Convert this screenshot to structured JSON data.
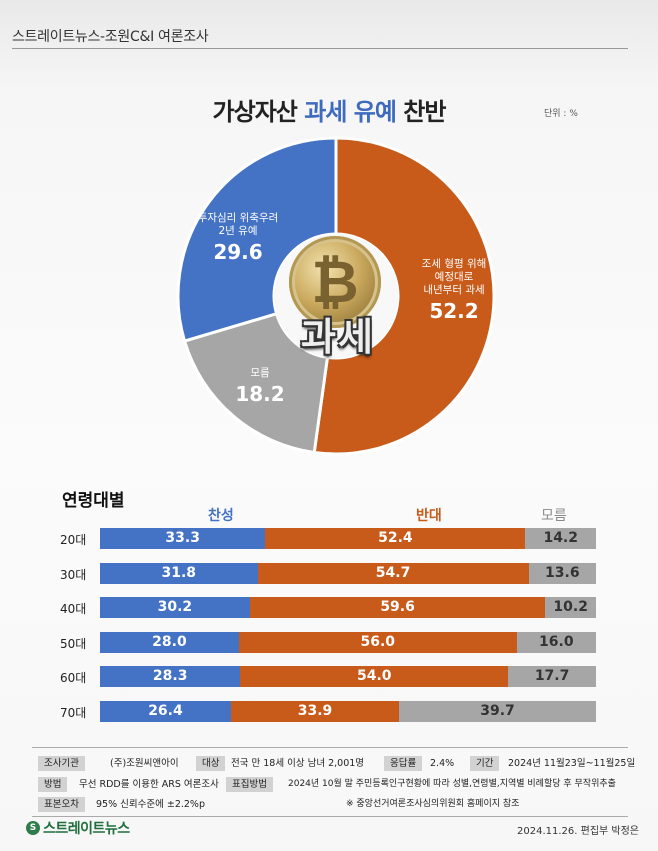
{
  "header": {
    "source": "스트레이트뉴스-조원C&I 여론조사"
  },
  "title": {
    "part1": "가상자산 ",
    "part2": "과세 유예",
    "part3": " 찬반"
  },
  "unit": "단위 : %",
  "center": {
    "coin_symbol": "₿",
    "word": "과세"
  },
  "chart_data": [
    {
      "type": "pie",
      "variant": "donut",
      "slices": [
        {
          "label_line1": "조세 형평 위해",
          "label_line2": "예정대로",
          "label_line3": "내년부터 과세",
          "value": 52.2,
          "color": "#c85a1a"
        },
        {
          "label_line1": "모름",
          "value": 18.2,
          "color": "#a6a6a6"
        },
        {
          "label_line1": "투자심리 위축우려",
          "label_line2": "2년 유예",
          "value": 29.6,
          "color": "#4472c4"
        }
      ]
    },
    {
      "type": "bar",
      "orientation": "horizontal",
      "stacked": true,
      "title": "연령대별",
      "categories": [
        "20대",
        "30대",
        "40대",
        "50대",
        "60대",
        "70대"
      ],
      "series": [
        {
          "name": "찬성",
          "color": "#4472c4",
          "values": [
            33.3,
            31.8,
            30.2,
            28.0,
            28.3,
            26.4
          ]
        },
        {
          "name": "반대",
          "color": "#c85a1a",
          "values": [
            52.4,
            54.7,
            59.6,
            56.0,
            54.0,
            33.9
          ]
        },
        {
          "name": "모름",
          "color": "#a6a6a6",
          "values": [
            14.2,
            13.6,
            10.2,
            16.0,
            17.7,
            39.7
          ]
        }
      ]
    }
  ],
  "labels": {
    "donut": [
      {
        "l1": "조세 형평 위해",
        "l2": "예정대로",
        "l3": "내년부터 과세",
        "v": "52.2"
      },
      {
        "l1": "모름",
        "v": "18.2"
      },
      {
        "l1": "투자심리 위축우려",
        "l2": "2년 유예",
        "v": "29.6"
      }
    ],
    "bars": [
      [
        "33.3",
        "52.4",
        "14.2"
      ],
      [
        "31.8",
        "54.7",
        "13.6"
      ],
      [
        "30.2",
        "59.6",
        "10.2"
      ],
      [
        "28.0",
        "56.0",
        "16.0"
      ],
      [
        "28.3",
        "54.0",
        "17.7"
      ],
      [
        "26.4",
        "33.9",
        "39.7"
      ]
    ]
  },
  "methodology": {
    "agency_tag": "조사기관",
    "agency": "(주)조원씨앤아이",
    "target_tag": "대상",
    "target": "전국 만 18세 이상 남녀 2,001명",
    "response_tag": "응답률",
    "response": "2.4%",
    "period_tag": "기간",
    "period": "2024년 11월23일~11월25일",
    "method_tag": "방법",
    "method": "무선 RDD를 이용한 ARS 여론조사",
    "sampling_tag": "표집방법",
    "sampling": "2024년 10월 말 주민등록인구현황에 따라 성별,연령별,지역별 비례할당 후 무작위추출",
    "error_tag": "표본오차",
    "error": "95% 신뢰수준에 ±2.2%p",
    "note": "※ 중앙선거여론조사심의위원회 홈페이지 참조"
  },
  "footer": {
    "logo_mark": "S",
    "logo_text": "스트레이트뉴스",
    "date": "2024.11.26. 편집부 박정은"
  },
  "colors": {
    "favor": "#4472c4",
    "oppose": "#c85a1a",
    "unknown": "#a6a6a6",
    "title_blue": "#3f6bbf"
  }
}
